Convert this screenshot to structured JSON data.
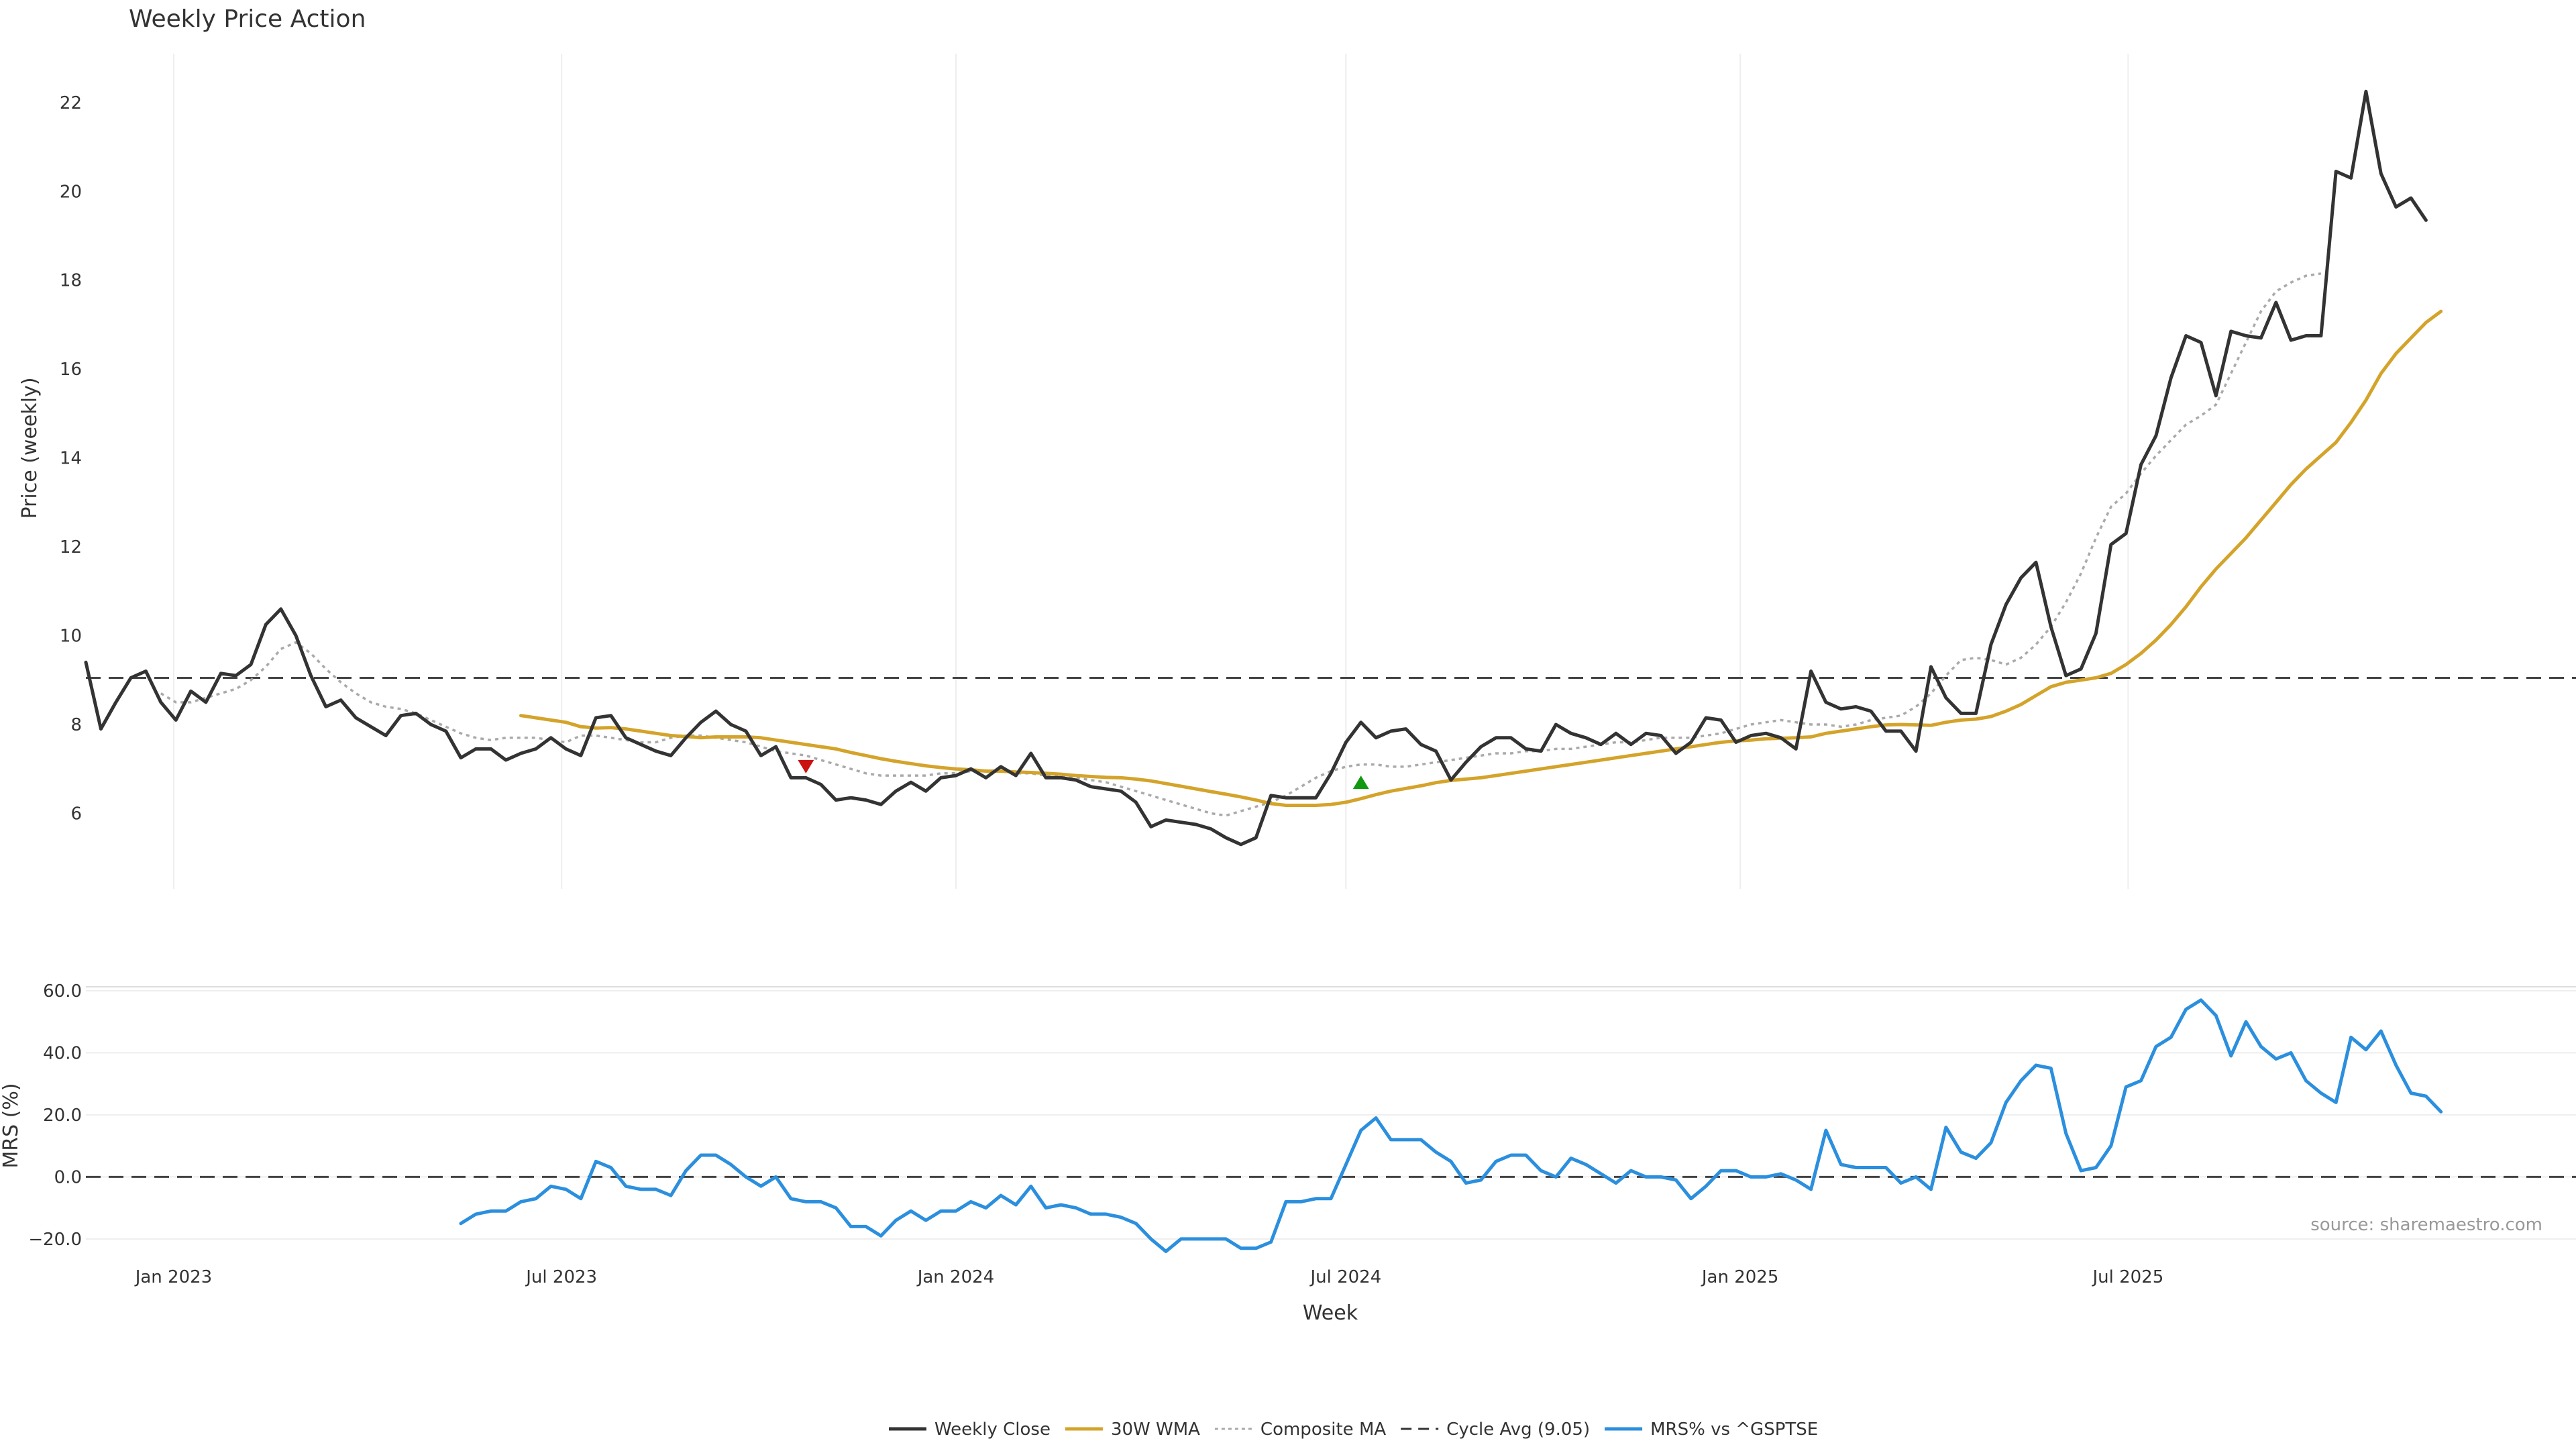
{
  "chart_data": [
    {
      "type": "line",
      "title": "Weekly Price Action",
      "ylabel": "Price (weekly)",
      "ylim": [
        4.3,
        23.1
      ],
      "yticks": [
        6,
        8,
        10,
        12,
        14,
        16,
        18,
        20,
        22
      ],
      "grid": "vertical",
      "x_start": "2022-11-21",
      "x_step_days": 7,
      "reference_line": {
        "name": "Cycle Avg (9.05)",
        "value": 9.05
      },
      "signals": [
        {
          "type": "sell",
          "date": "2023-10-23",
          "value": 7.05,
          "color": "#cc1111"
        },
        {
          "type": "buy",
          "date": "2024-07-08",
          "value": 6.7,
          "color": "#119911"
        }
      ],
      "series": [
        {
          "name": "Weekly Close",
          "color": "#333333",
          "style": "solid",
          "start_index": 0,
          "values": [
            9.4,
            7.9,
            8.5,
            9.05,
            9.2,
            8.5,
            8.1,
            8.75,
            8.5,
            9.15,
            9.1,
            9.35,
            10.25,
            10.6,
            10.0,
            9.1,
            8.4,
            8.55,
            8.15,
            7.95,
            7.75,
            8.2,
            8.25,
            8.0,
            7.85,
            7.25,
            7.45,
            7.45,
            7.2,
            7.35,
            7.45,
            7.7,
            7.45,
            7.3,
            8.15,
            8.2,
            7.7,
            7.55,
            7.4,
            7.3,
            7.7,
            8.05,
            8.3,
            8.0,
            7.85,
            7.3,
            7.5,
            6.8,
            6.8,
            6.65,
            6.3,
            6.35,
            6.3,
            6.2,
            6.5,
            6.7,
            6.5,
            6.8,
            6.85,
            7.0,
            6.8,
            7.05,
            6.85,
            7.35,
            6.8,
            6.8,
            6.75,
            6.6,
            6.55,
            6.5,
            6.25,
            5.7,
            5.85,
            5.8,
            5.75,
            5.65,
            5.45,
            5.3,
            5.45,
            6.4,
            6.35,
            6.35,
            6.35,
            6.9,
            7.6,
            8.05,
            7.7,
            7.85,
            7.9,
            7.55,
            7.4,
            6.75,
            7.15,
            7.5,
            7.7,
            7.7,
            7.45,
            7.4,
            8.0,
            7.8,
            7.7,
            7.55,
            7.8,
            7.55,
            7.8,
            7.75,
            7.35,
            7.6,
            8.15,
            8.1,
            7.6,
            7.75,
            7.8,
            7.7,
            7.45,
            9.2,
            8.5,
            8.35,
            8.4,
            8.3,
            7.85,
            7.85,
            7.4,
            9.3,
            8.6,
            8.25,
            8.25,
            9.8,
            10.7,
            11.3,
            11.65,
            10.2,
            9.1,
            9.25,
            10.05,
            12.05,
            12.3,
            13.85,
            14.5,
            15.8,
            16.75,
            16.6,
            15.4,
            16.85,
            16.75,
            16.7,
            17.5,
            16.65,
            16.75,
            16.75,
            20.45,
            20.3,
            22.25,
            20.4,
            19.65,
            19.85,
            19.35
          ]
        },
        {
          "name": "30W WMA",
          "color": "#d4a32a",
          "style": "solid",
          "start_index": 29,
          "values": [
            8.2,
            8.15,
            8.1,
            8.05,
            7.95,
            7.92,
            7.93,
            7.9,
            7.85,
            7.8,
            7.75,
            7.73,
            7.7,
            7.72,
            7.72,
            7.72,
            7.7,
            7.65,
            7.6,
            7.55,
            7.5,
            7.45,
            7.37,
            7.3,
            7.23,
            7.17,
            7.12,
            7.07,
            7.03,
            7.0,
            6.98,
            6.95,
            6.95,
            6.93,
            6.92,
            6.9,
            6.88,
            6.85,
            6.83,
            6.81,
            6.8,
            6.77,
            6.73,
            6.67,
            6.61,
            6.55,
            6.49,
            6.43,
            6.37,
            6.3,
            6.22,
            6.18,
            6.18,
            6.18,
            6.2,
            6.25,
            6.33,
            6.42,
            6.5,
            6.56,
            6.62,
            6.69,
            6.74,
            6.77,
            6.8,
            6.85,
            6.9,
            6.95,
            7.0,
            7.05,
            7.1,
            7.15,
            7.2,
            7.25,
            7.3,
            7.35,
            7.4,
            7.45,
            7.5,
            7.55,
            7.6,
            7.63,
            7.65,
            7.68,
            7.69,
            7.7,
            7.72,
            7.8,
            7.85,
            7.9,
            7.95,
            7.99,
            8.0,
            7.99,
            7.98,
            8.05,
            8.1,
            8.12,
            8.18,
            8.3,
            8.45,
            8.65,
            8.85,
            8.95,
            9.0,
            9.05,
            9.15,
            9.35,
            9.6,
            9.9,
            10.25,
            10.65,
            11.1,
            11.5,
            11.85,
            12.2,
            12.6,
            13.0,
            13.4,
            13.75,
            14.05,
            14.35,
            14.8,
            15.3,
            15.9,
            16.35,
            16.7,
            17.05,
            17.3
          ]
        },
        {
          "name": "Composite MA",
          "color": "#aaaaaa",
          "style": "dotted",
          "start_index": 5,
          "values": [
            8.7,
            8.5,
            8.5,
            8.6,
            8.7,
            8.8,
            9.0,
            9.3,
            9.7,
            9.85,
            9.6,
            9.25,
            8.95,
            8.7,
            8.5,
            8.4,
            8.35,
            8.25,
            8.1,
            7.95,
            7.8,
            7.7,
            7.65,
            7.7,
            7.7,
            7.7,
            7.65,
            7.6,
            7.75,
            7.75,
            7.7,
            7.65,
            7.6,
            7.6,
            7.7,
            7.75,
            7.75,
            7.7,
            7.65,
            7.6,
            7.5,
            7.4,
            7.35,
            7.3,
            7.2,
            7.1,
            7.0,
            6.9,
            6.85,
            6.85,
            6.85,
            6.85,
            6.9,
            6.9,
            6.95,
            6.95,
            6.95,
            6.9,
            6.9,
            6.85,
            6.85,
            6.8,
            6.75,
            6.7,
            6.6,
            6.5,
            6.4,
            6.3,
            6.2,
            6.1,
            6.0,
            5.95,
            6.05,
            6.15,
            6.25,
            6.4,
            6.6,
            6.8,
            6.95,
            7.05,
            7.1,
            7.1,
            7.05,
            7.05,
            7.1,
            7.15,
            7.2,
            7.25,
            7.3,
            7.35,
            7.35,
            7.4,
            7.4,
            7.45,
            7.45,
            7.5,
            7.55,
            7.6,
            7.6,
            7.65,
            7.7,
            7.7,
            7.7,
            7.75,
            7.8,
            7.9,
            8.0,
            8.05,
            8.1,
            8.05,
            8.0,
            8.0,
            7.95,
            8.0,
            8.1,
            8.15,
            8.2,
            8.4,
            8.7,
            9.1,
            9.45,
            9.5,
            9.45,
            9.35,
            9.5,
            9.8,
            10.2,
            10.75,
            11.4,
            12.2,
            12.9,
            13.2,
            13.65,
            14.05,
            14.4,
            14.75,
            14.95,
            15.2,
            15.9,
            16.6,
            17.3,
            17.75,
            17.95,
            18.1,
            18.15
          ]
        }
      ]
    },
    {
      "type": "line",
      "ylabel": "MRS (%)",
      "xlabel": "Week",
      "ylim": [
        -25,
        63
      ],
      "yticks": [
        "60.0",
        "40.0",
        "20.0",
        "0.0",
        "−20.0"
      ],
      "ytick_values": [
        60,
        40,
        20,
        0,
        -20
      ],
      "grid": "horizontal",
      "x_start": "2022-11-21",
      "x_step_days": 7,
      "xticks": [
        {
          "label": "Jan 2023",
          "date": "2023-01-01"
        },
        {
          "label": "Jul 2023",
          "date": "2023-07-01"
        },
        {
          "label": "Jan 2024",
          "date": "2024-01-01"
        },
        {
          "label": "Jul 2024",
          "date": "2024-07-01"
        },
        {
          "label": "Jan 2025",
          "date": "2025-01-01"
        },
        {
          "label": "Jul 2025",
          "date": "2025-07-01"
        }
      ],
      "reference_line": {
        "value": 0
      },
      "series": [
        {
          "name": "MRS% vs ^GSPTSE",
          "color": "#2b8fde",
          "style": "solid",
          "start_index": 25,
          "values": [
            -15,
            -12,
            -11,
            -11,
            -8,
            -7,
            -3,
            -4,
            -7,
            5,
            3,
            -3,
            -4,
            -4,
            -6,
            2,
            7,
            7,
            4,
            0,
            -3,
            0,
            -7,
            -8,
            -8,
            -10,
            -16,
            -16,
            -19,
            -14,
            -11,
            -14,
            -11,
            -11,
            -8,
            -10,
            -6,
            -9,
            -3,
            -10,
            -9,
            -10,
            -12,
            -12,
            -13,
            -15,
            -20,
            -24,
            -20,
            -20,
            -20,
            -20,
            -23,
            -23,
            -21,
            -8,
            -8,
            -7,
            -7,
            4,
            15,
            19,
            12,
            12,
            12,
            8,
            5,
            -2,
            -1,
            5,
            7,
            7,
            2,
            0,
            6,
            4,
            1,
            -2,
            2,
            0,
            0,
            -1,
            -7,
            -3,
            2,
            2,
            0,
            0,
            1,
            -1,
            -4,
            15,
            4,
            3,
            3,
            3,
            -2,
            0,
            -4,
            16,
            8,
            6,
            11,
            24,
            31,
            36,
            35,
            14,
            2,
            3,
            10,
            29,
            31,
            42,
            45,
            54,
            57,
            52,
            39,
            50,
            42,
            38,
            40,
            31,
            27,
            24,
            45,
            41,
            47,
            36,
            27,
            26,
            21
          ]
        }
      ]
    }
  ],
  "source": "source: sharemaestro.com",
  "legend": [
    {
      "label": "Weekly Close",
      "color": "#333333",
      "style": "solid"
    },
    {
      "label": "30W WMA",
      "color": "#d4a32a",
      "style": "solid"
    },
    {
      "label": "Composite MA",
      "color": "#aaaaaa",
      "style": "dotted"
    },
    {
      "label": "Cycle Avg (9.05)",
      "color": "#333333",
      "style": "dashed"
    },
    {
      "label": "MRS% vs ^GSPTSE",
      "color": "#2b8fde",
      "style": "solid"
    }
  ]
}
